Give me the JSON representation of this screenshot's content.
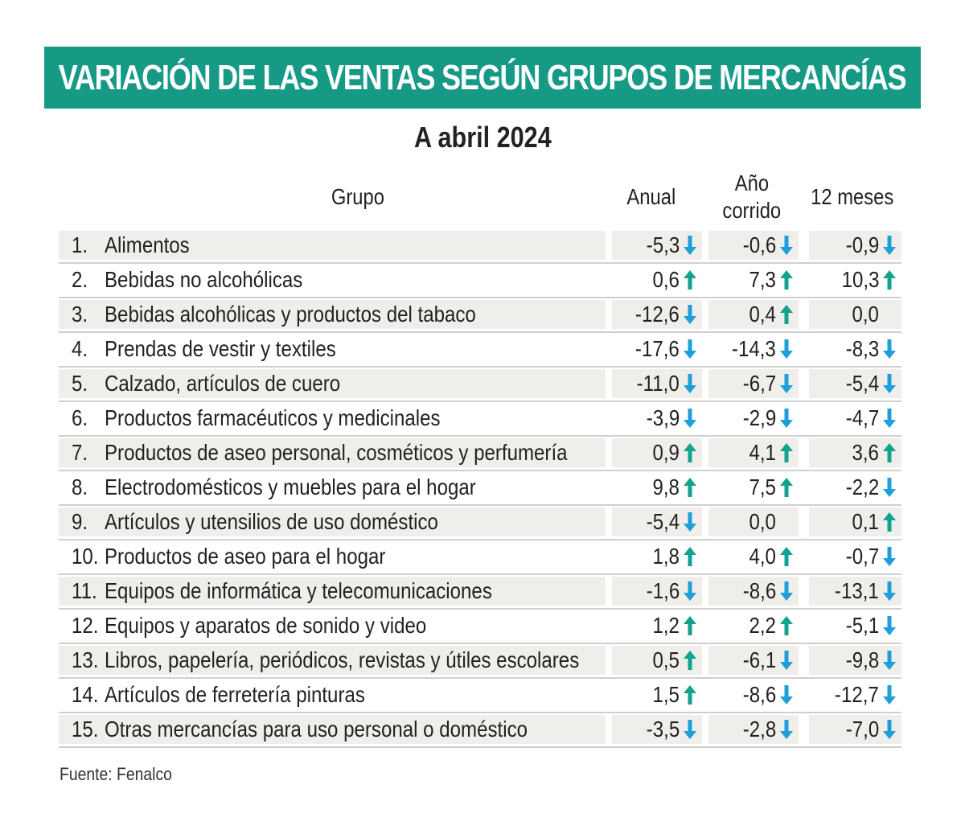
{
  "colors": {
    "banner_bg": "#169a86",
    "up_arrow": "#11a38f",
    "down_arrow": "#1e9fd9",
    "row_shade": "#efeeea"
  },
  "chart_data": {
    "type": "table",
    "title": "VARIACIÓN DE LAS VENTAS SEGÚN GRUPOS DE MERCANCÍAS",
    "subtitle": "A abril 2024",
    "columns": {
      "group": "Grupo",
      "annual": "Anual",
      "ytd_line1": "Año",
      "ytd_line2": "corrido",
      "twelve_months": "12 meses"
    },
    "rows": [
      {
        "num": "1.",
        "name": "Alimentos",
        "anual": {
          "value": "-5,3",
          "trend": "down"
        },
        "corrido": {
          "value": "-0,6",
          "trend": "down"
        },
        "meses": {
          "value": "-0,9",
          "trend": "down"
        }
      },
      {
        "num": "2.",
        "name": "Bebidas no alcohólicas",
        "anual": {
          "value": "0,6",
          "trend": "up"
        },
        "corrido": {
          "value": "7,3",
          "trend": "up"
        },
        "meses": {
          "value": "10,3",
          "trend": "up"
        }
      },
      {
        "num": "3.",
        "name": "Bebidas alcohólicas y productos del tabaco",
        "anual": {
          "value": "-12,6",
          "trend": "down"
        },
        "corrido": {
          "value": "0,4",
          "trend": "up"
        },
        "meses": {
          "value": "0,0",
          "trend": "none"
        }
      },
      {
        "num": "4.",
        "name": "Prendas de vestir y textiles",
        "anual": {
          "value": "-17,6",
          "trend": "down"
        },
        "corrido": {
          "value": "-14,3",
          "trend": "down"
        },
        "meses": {
          "value": "-8,3",
          "trend": "down"
        }
      },
      {
        "num": "5.",
        "name": "Calzado, artículos de cuero",
        "anual": {
          "value": "-11,0",
          "trend": "down"
        },
        "corrido": {
          "value": "-6,7",
          "trend": "down"
        },
        "meses": {
          "value": "-5,4",
          "trend": "down"
        }
      },
      {
        "num": "6.",
        "name": "Productos farmacéuticos y medicinales",
        "anual": {
          "value": "-3,9",
          "trend": "down"
        },
        "corrido": {
          "value": "-2,9",
          "trend": "down"
        },
        "meses": {
          "value": "-4,7",
          "trend": "down"
        }
      },
      {
        "num": "7.",
        "name": "Productos de aseo personal, cosméticos y perfumería",
        "anual": {
          "value": "0,9",
          "trend": "up"
        },
        "corrido": {
          "value": "4,1",
          "trend": "up"
        },
        "meses": {
          "value": "3,6",
          "trend": "up"
        }
      },
      {
        "num": "8.",
        "name": "Electrodomésticos y muebles para el hogar",
        "anual": {
          "value": "9,8",
          "trend": "up"
        },
        "corrido": {
          "value": "7,5",
          "trend": "up"
        },
        "meses": {
          "value": "-2,2",
          "trend": "down"
        }
      },
      {
        "num": "9.",
        "name": "Artículos y utensilios de uso doméstico",
        "anual": {
          "value": "-5,4",
          "trend": "down"
        },
        "corrido": {
          "value": "0,0",
          "trend": "none"
        },
        "meses": {
          "value": "0,1",
          "trend": "up"
        }
      },
      {
        "num": "10.",
        "name": "Productos de aseo para el hogar",
        "anual": {
          "value": "1,8",
          "trend": "up"
        },
        "corrido": {
          "value": "4,0",
          "trend": "up"
        },
        "meses": {
          "value": "-0,7",
          "trend": "down"
        }
      },
      {
        "num": "11.",
        "name": "Equipos de informática y telecomunicaciones",
        "anual": {
          "value": "-1,6",
          "trend": "down"
        },
        "corrido": {
          "value": "-8,6",
          "trend": "down"
        },
        "meses": {
          "value": "-13,1",
          "trend": "down"
        }
      },
      {
        "num": "12.",
        "name": "Equipos y aparatos de sonido y video",
        "anual": {
          "value": "1,2",
          "trend": "up"
        },
        "corrido": {
          "value": "2,2",
          "trend": "up"
        },
        "meses": {
          "value": "-5,1",
          "trend": "down"
        }
      },
      {
        "num": "13.",
        "name": "Libros, papelería, periódicos, revistas y útiles escolares",
        "anual": {
          "value": "0,5",
          "trend": "up"
        },
        "corrido": {
          "value": "-6,1",
          "trend": "down"
        },
        "meses": {
          "value": "-9,8",
          "trend": "down"
        }
      },
      {
        "num": "14.",
        "name": "Artículos de ferretería pinturas",
        "anual": {
          "value": "1,5",
          "trend": "up"
        },
        "corrido": {
          "value": "-8,6",
          "trend": "down"
        },
        "meses": {
          "value": "-12,7",
          "trend": "down"
        }
      },
      {
        "num": "15.",
        "name": "Otras mercancías para uso personal o doméstico",
        "anual": {
          "value": "-3,5",
          "trend": "down"
        },
        "corrido": {
          "value": "-2,8",
          "trend": "down"
        },
        "meses": {
          "value": "-7,0",
          "trend": "down"
        }
      }
    ],
    "source": "Fuente: Fenalco"
  }
}
